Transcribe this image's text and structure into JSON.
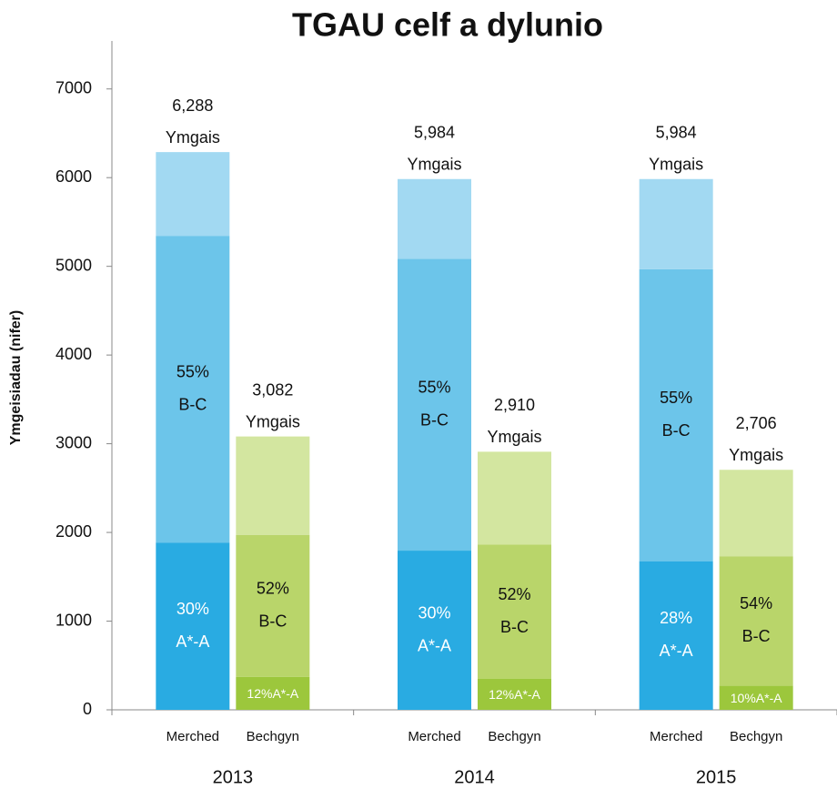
{
  "chart_data": {
    "type": "stacked_group_bar",
    "title": "TGAU celf a dylunio",
    "ylabel": "Ymgeisiadau (nifer)",
    "ylim": [
      0,
      7500
    ],
    "yticks": [
      0,
      1000,
      2000,
      3000,
      4000,
      5000,
      6000,
      7000
    ],
    "groups": [
      "2013",
      "2014",
      "2015"
    ],
    "total_word": "Ymgais",
    "bars": [
      {
        "name": "Merched",
        "totals": [
          6288,
          5984,
          5984
        ],
        "total_labels": [
          "6,288",
          "5,984",
          "5,984"
        ],
        "segments": [
          {
            "color": "#29abe2",
            "label_color": "#ffffff",
            "values": [
              1886,
              1795,
              1676
            ],
            "percents": [
              30,
              30,
              28
            ],
            "percent_labels": [
              "30%",
              "30%",
              "28%"
            ],
            "grade": "A*-A"
          },
          {
            "color": "#6cc5ea",
            "label_color": "#111111",
            "values": [
              3458,
              3291,
              3291
            ],
            "percents": [
              55,
              55,
              55
            ],
            "percent_labels": [
              "55%",
              "55%",
              "55%"
            ],
            "grade": "B-C"
          },
          {
            "color": "#a2d9f2",
            "values": [
              944,
              898,
              1017
            ]
          }
        ]
      },
      {
        "name": "Bechgyn",
        "totals": [
          3082,
          2910,
          2706
        ],
        "total_labels": [
          "3,082",
          "2,910",
          "2,706"
        ],
        "segments": [
          {
            "color": "#9cc73c",
            "label_color": "#ffffff",
            "inline": true,
            "values": [
              370,
              349,
              271
            ],
            "percents": [
              12,
              12,
              10
            ],
            "percent_labels": [
              "12%",
              "12%",
              "10%"
            ],
            "grade": "A*-A"
          },
          {
            "color": "#b9d56a",
            "label_color": "#111111",
            "values": [
              1603,
              1513,
              1461
            ],
            "percents": [
              52,
              52,
              54
            ],
            "percent_labels": [
              "52%",
              "52%",
              "54%"
            ],
            "grade": "B-C"
          },
          {
            "color": "#d3e6a0",
            "values": [
              1109,
              1048,
              974
            ]
          }
        ]
      }
    ]
  }
}
